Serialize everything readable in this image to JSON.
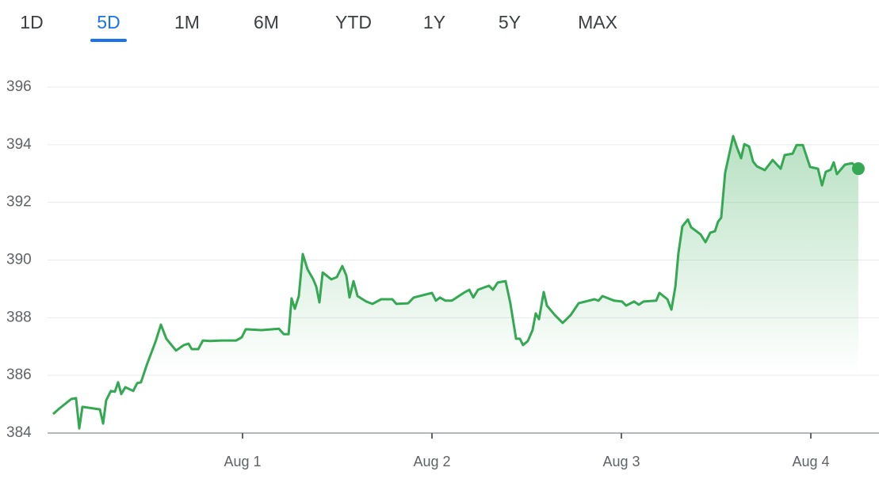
{
  "tabs": [
    "1D",
    "5D",
    "1M",
    "6M",
    "YTD",
    "1Y",
    "5Y",
    "MAX"
  ],
  "selected_tab": 1,
  "chart_data": {
    "type": "area",
    "color": "#34a853",
    "x": [
      0,
      0.033,
      0.096,
      0.121,
      0.138,
      0.155,
      0.247,
      0.264,
      0.28,
      0.305,
      0.326,
      0.343,
      0.36,
      0.381,
      0.423,
      0.444,
      0.464,
      0.494,
      0.54,
      0.569,
      0.598,
      0.649,
      0.69,
      0.715,
      0.732,
      0.766,
      0.791,
      0.828,
      0.891,
      0.967,
      0.996,
      1.017,
      1.1,
      1.192,
      1.218,
      1.243,
      1.259,
      1.276,
      1.297,
      1.318,
      1.343,
      1.372,
      1.389,
      1.406,
      1.423,
      1.469,
      1.498,
      1.527,
      1.548,
      1.565,
      1.586,
      1.607,
      1.653,
      1.686,
      1.732,
      1.791,
      1.812,
      1.874,
      1.904,
      2.0,
      2.021,
      2.042,
      2.071,
      2.105,
      2.167,
      2.197,
      2.218,
      2.243,
      2.301,
      2.322,
      2.347,
      2.389,
      2.414,
      2.444,
      2.464,
      2.481,
      2.506,
      2.531,
      2.548,
      2.565,
      2.59,
      2.607,
      2.649,
      2.69,
      2.732,
      2.774,
      2.858,
      2.879,
      2.9,
      2.962,
      3.004,
      3.025,
      3.067,
      3.092,
      3.117,
      3.184,
      3.201,
      3.243,
      3.264,
      3.285,
      3.301,
      3.322,
      3.351,
      3.368,
      3.418,
      3.444,
      3.469,
      3.494,
      3.51,
      3.527,
      3.548,
      3.569,
      3.59,
      3.611,
      3.632,
      3.649,
      3.674,
      3.695,
      3.715,
      3.757,
      3.799,
      3.841,
      3.862,
      3.904,
      3.925,
      3.958,
      3.996,
      4.038,
      4.059,
      4.079,
      4.105,
      4.121,
      4.138,
      4.18,
      4.218,
      4.251
    ],
    "values": [
      384.66,
      384.85,
      385.18,
      385.21,
      384.16,
      384.91,
      384.82,
      384.33,
      385.13,
      385.46,
      385.43,
      385.76,
      385.35,
      385.59,
      385.46,
      385.73,
      385.76,
      386.36,
      387.16,
      387.76,
      387.27,
      386.86,
      387.05,
      387.1,
      386.91,
      386.91,
      387.21,
      387.19,
      387.21,
      387.21,
      387.32,
      387.6,
      387.57,
      387.62,
      387.43,
      387.43,
      388.67,
      388.31,
      388.75,
      390.21,
      389.68,
      389.35,
      389.08,
      388.53,
      389.57,
      389.33,
      389.41,
      389.79,
      389.46,
      388.7,
      389.27,
      388.75,
      388.56,
      388.48,
      388.64,
      388.64,
      388.48,
      388.5,
      388.7,
      388.86,
      388.59,
      388.7,
      388.59,
      388.59,
      388.86,
      388.97,
      388.7,
      388.97,
      389.11,
      388.97,
      389.22,
      389.27,
      388.5,
      387.27,
      387.27,
      387.05,
      387.19,
      387.57,
      388.15,
      387.95,
      388.89,
      388.42,
      388.09,
      387.82,
      388.09,
      388.5,
      388.64,
      388.59,
      388.75,
      388.59,
      388.56,
      388.42,
      388.56,
      388.45,
      388.56,
      388.59,
      388.86,
      388.64,
      388.28,
      389.08,
      390.23,
      391.17,
      391.41,
      391.14,
      390.89,
      390.62,
      390.95,
      391.0,
      391.33,
      391.47,
      393.03,
      393.67,
      394.3,
      393.89,
      393.53,
      394.02,
      393.94,
      393.42,
      393.25,
      393.12,
      393.47,
      393.17,
      393.64,
      393.69,
      393.99,
      393.99,
      393.23,
      393.17,
      392.59,
      393.06,
      393.14,
      393.39,
      392.98,
      393.31,
      393.36,
      393.17
    ],
    "xlim": [
      0,
      4.36
    ],
    "xticks": [
      {
        "value": 1,
        "label": "Aug 1"
      },
      {
        "value": 2,
        "label": "Aug 2"
      },
      {
        "value": 3,
        "label": "Aug 3"
      },
      {
        "value": 4,
        "label": "Aug 4"
      }
    ],
    "ylim": [
      384,
      396
    ],
    "yticks": [
      384,
      386,
      388,
      390,
      392,
      394,
      396
    ],
    "grid": true
  }
}
